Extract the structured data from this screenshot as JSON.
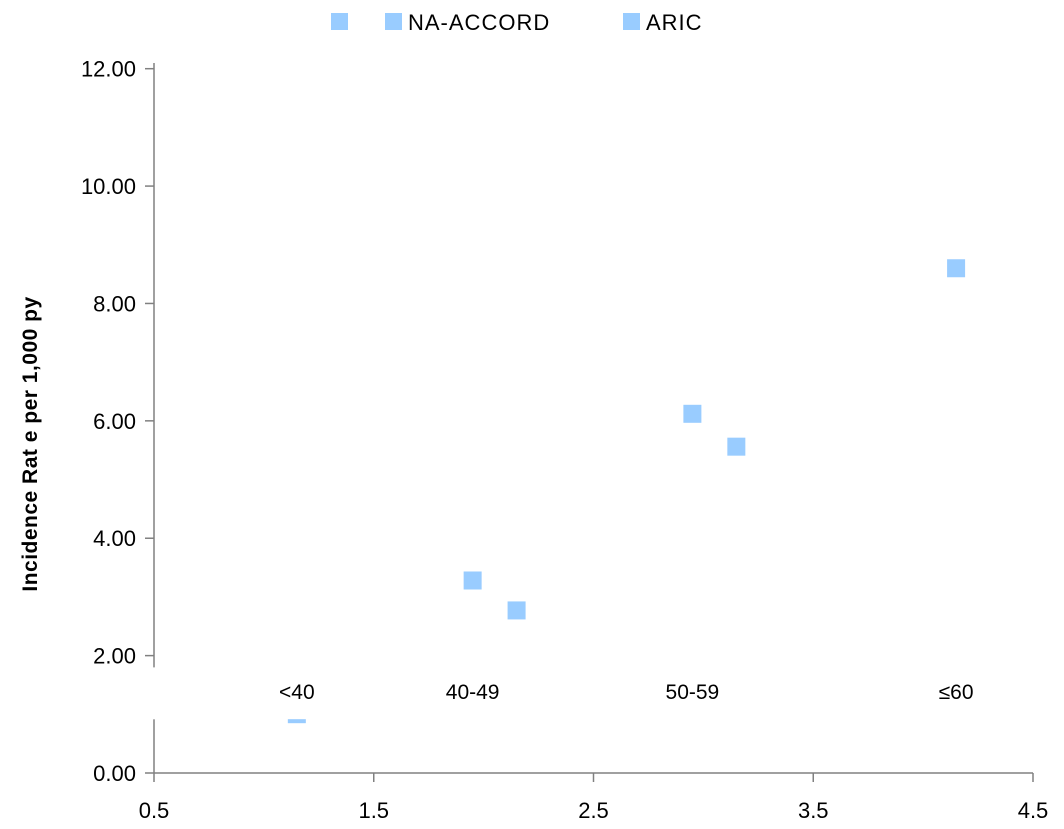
{
  "chart_data": {
    "type": "scatter",
    "title": "",
    "xlabel": "",
    "ylabel": "Incidence Rat e per 1,000 py",
    "xlim": [
      0.5,
      4.5
    ],
    "ylim": [
      0,
      13
    ],
    "x_ticks": [
      0.5,
      1.5,
      2.5,
      3.5,
      4.5
    ],
    "x_tick_labels": [
      "0.5",
      "1.5",
      "2.5",
      "3.5",
      "4.5"
    ],
    "y_ticks": [
      0,
      2,
      4,
      6,
      8,
      10,
      12
    ],
    "y_tick_labels": [
      "0.00",
      "2.00",
      "4.00",
      "6.00",
      "8.00",
      "10.00",
      "12.00"
    ],
    "y_axis_break": [
      1.0,
      1.8
    ],
    "legend_position": "top",
    "series": [
      {
        "name": "",
        "color": "#99ccff",
        "marker": "square",
        "points": [
          {
            "x": 1.15,
            "y": 0.9
          },
          {
            "x": 1.95,
            "y": 3.28
          },
          {
            "x": 2.95,
            "y": 6.12
          },
          {
            "x": 4.15,
            "y": 8.6
          }
        ]
      },
      {
        "name": "NA-ACCORD",
        "color": "#99ccff",
        "marker": "square",
        "points": []
      },
      {
        "name": "ARIC",
        "color": "#99ccff",
        "marker": "square",
        "points": [
          {
            "x": 2.15,
            "y": 2.77
          },
          {
            "x": 3.15,
            "y": 5.56
          }
        ]
      }
    ],
    "annotations": [
      {
        "text": "<40",
        "x": 1.15,
        "y": 1.4
      },
      {
        "text": "40-49",
        "x": 1.95,
        "y": 1.4
      },
      {
        "text": "50-59",
        "x": 2.95,
        "y": 1.4
      },
      {
        "text": "≤60",
        "x": 4.15,
        "y": 1.4
      }
    ]
  }
}
